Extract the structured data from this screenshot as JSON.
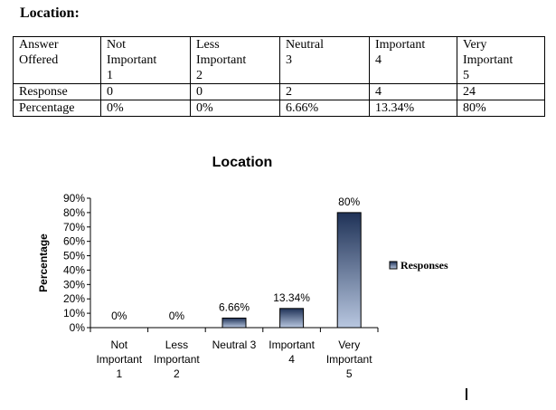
{
  "heading": "Location:",
  "table": {
    "header": [
      [
        "Answer",
        "Offered"
      ],
      [
        "Not",
        "Important",
        "1"
      ],
      [
        "Less",
        "Important",
        "2"
      ],
      [
        "Neutral",
        "3"
      ],
      [
        "Important",
        "4"
      ],
      [
        "Very",
        "Important",
        "5"
      ]
    ],
    "rows": [
      [
        "Response",
        "0",
        "0",
        "2",
        "4",
        "24"
      ],
      [
        "Percentage",
        "0%",
        "0%",
        "6.66%",
        "13.34%",
        "80%"
      ]
    ]
  },
  "chart_data": {
    "type": "bar",
    "title": "Location",
    "ylabel": "Percentage",
    "xlabel": "",
    "categories": [
      [
        "Not",
        "Important",
        "1"
      ],
      [
        "Less",
        "Important",
        "2"
      ],
      [
        "Neutral 3"
      ],
      [
        "Important",
        "4"
      ],
      [
        "Very",
        "Important",
        "5"
      ]
    ],
    "series": [
      {
        "name": "Responses",
        "values": [
          0,
          0,
          6.66,
          13.34,
          80
        ],
        "labels": [
          "0%",
          "0%",
          "6.66%",
          "13.34%",
          "80%"
        ]
      }
    ],
    "ylim": [
      0,
      90
    ],
    "yticks": [
      "0%",
      "10%",
      "20%",
      "30%",
      "40%",
      "50%",
      "60%",
      "70%",
      "80%",
      "90%"
    ],
    "grid": false,
    "legend": "right",
    "colors": {
      "bar_dark": "#1f3257",
      "bar_light": "#b8c7e0",
      "axis": "#000000"
    }
  }
}
